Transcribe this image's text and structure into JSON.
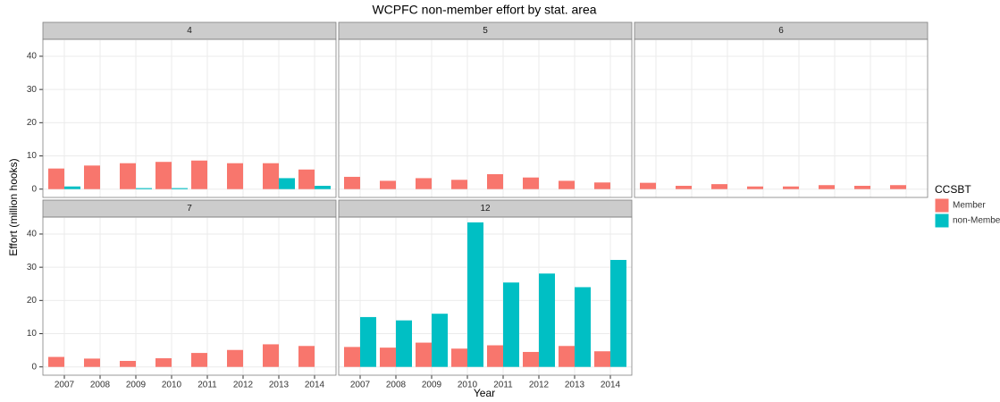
{
  "chart_data": {
    "type": "bar",
    "title": "WCPFC non-member effort by stat. area",
    "x_label": "Year",
    "y_label": "Effort (million hooks)",
    "legend_title": "CCSBT",
    "categories": [
      "2007",
      "2008",
      "2009",
      "2010",
      "2011",
      "2012",
      "2013",
      "2014"
    ],
    "series": [
      {
        "name": "Member",
        "color": "#f8766d"
      },
      {
        "name": "non-Member",
        "color": "#00bfc4"
      }
    ],
    "ylim": [
      -2.5,
      45.1
    ],
    "yticks": [
      0,
      10,
      20,
      30,
      40
    ],
    "grid": true,
    "facets": [
      {
        "label": "4",
        "values": [
          [
            6.2,
            7.1,
            7.8,
            8.2,
            8.6,
            7.8,
            7.8,
            5.9
          ],
          [
            0.8,
            0,
            0.3,
            0.3,
            0,
            0,
            3.3,
            1.0
          ]
        ]
      },
      {
        "label": "5",
        "values": [
          [
            3.7,
            2.5,
            3.3,
            2.8,
            4.5,
            3.5,
            2.5,
            2.0
          ],
          [
            0,
            0,
            0,
            0,
            0,
            0,
            0,
            0
          ]
        ]
      },
      {
        "label": "6",
        "values": [
          [
            1.9,
            1.0,
            1.5,
            0.8,
            0.8,
            1.2,
            1.0,
            1.2
          ],
          [
            0,
            0,
            0,
            0,
            0,
            0,
            0,
            0
          ]
        ]
      },
      {
        "label": "7",
        "values": [
          [
            3.0,
            2.5,
            1.8,
            2.6,
            4.2,
            5.1,
            6.8,
            6.3
          ],
          [
            0,
            0,
            0,
            0,
            0,
            0,
            0,
            0
          ]
        ]
      },
      {
        "label": "12",
        "values": [
          [
            6.0,
            5.8,
            7.3,
            5.5,
            6.5,
            4.5,
            6.3,
            4.7
          ],
          [
            15.0,
            14.0,
            16.0,
            43.5,
            25.4,
            28.1,
            24.0,
            32.2
          ]
        ]
      }
    ]
  }
}
